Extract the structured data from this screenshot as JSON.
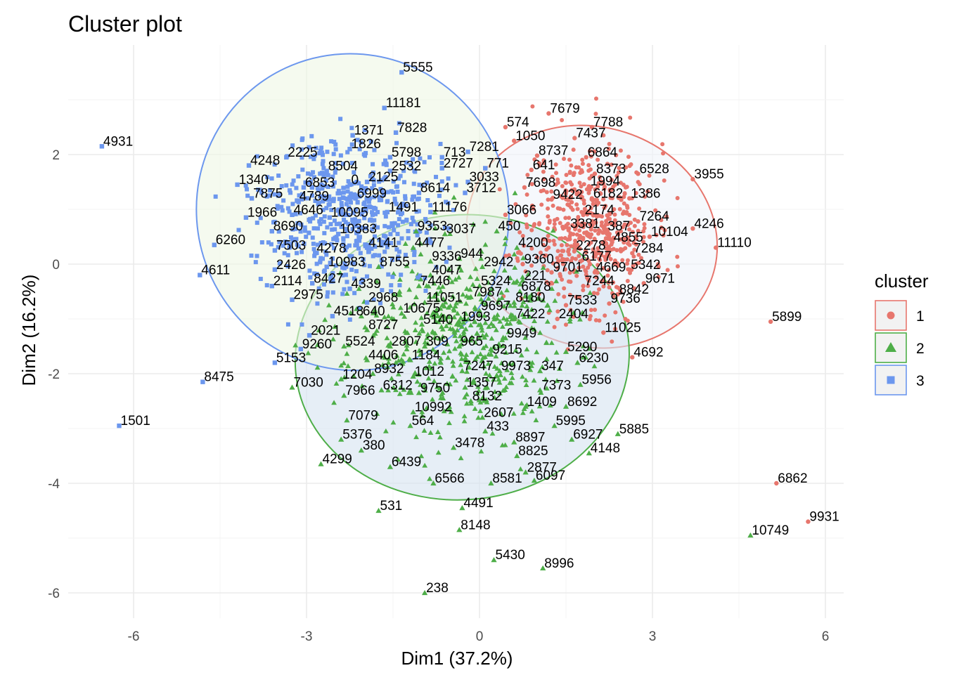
{
  "chart_data": {
    "type": "scatter",
    "title": "Cluster plot",
    "xlabel": "Dim1 (37.2%)",
    "ylabel": "Dim2 (16.2%)",
    "xlim": [
      -7.0,
      6.3
    ],
    "ylim": [
      -6.5,
      3.35
    ],
    "xticks": [
      -6,
      -3,
      0,
      3,
      6
    ],
    "yticks": [
      -6,
      -4,
      -2,
      0,
      2
    ],
    "xtick_labels": [
      "-6",
      "-3",
      "0",
      "3",
      "6"
    ],
    "ytick_labels": [
      "-6",
      "-4",
      "-2",
      "0",
      "2"
    ],
    "grid": true,
    "legend": {
      "title": "cluster",
      "position": "right",
      "entries": [
        {
          "label": "1",
          "color": "#E7766D",
          "shape": "circle"
        },
        {
          "label": "2",
          "color": "#4EAE48",
          "shape": "triangle"
        },
        {
          "label": "3",
          "color": "#6C97EE",
          "shape": "square"
        }
      ]
    },
    "ellipses": [
      {
        "cluster": "1",
        "cx": 1.95,
        "cy": 0.5,
        "rx": 2.2,
        "ry": 2.0,
        "angle": -18,
        "fill": "#f0f4fa",
        "stroke": "#E7766D"
      },
      {
        "cluster": "2",
        "cx": -0.3,
        "cy": -1.7,
        "rx": 2.9,
        "ry": 2.6,
        "angle": 5,
        "fill": "#d5e2f0",
        "stroke": "#4EAE48"
      },
      {
        "cluster": "3",
        "cx": -2.2,
        "cy": 0.95,
        "rx": 2.7,
        "ry": 2.9,
        "angle": 25,
        "fill": "#eef6e4",
        "stroke": "#6C97EE"
      }
    ],
    "clusters": [
      {
        "name": "1",
        "color": "#E7766D",
        "shape": "circle",
        "labeled_points": [
          {
            "label": "7679",
            "x": 1.2,
            "y": 2.75
          },
          {
            "label": "574",
            "x": 0.45,
            "y": 2.5
          },
          {
            "label": "7788",
            "x": 1.95,
            "y": 2.5
          },
          {
            "label": "1050",
            "x": 0.6,
            "y": 2.25
          },
          {
            "label": "7437",
            "x": 1.65,
            "y": 2.3
          },
          {
            "label": "8737",
            "x": 1.0,
            "y": 1.98
          },
          {
            "label": "6864",
            "x": 1.85,
            "y": 1.95
          },
          {
            "label": "641",
            "x": 0.9,
            "y": 1.72
          },
          {
            "label": "8373",
            "x": 2.0,
            "y": 1.65
          },
          {
            "label": "6528",
            "x": 2.75,
            "y": 1.65
          },
          {
            "label": "3955",
            "x": 3.7,
            "y": 1.55
          },
          {
            "label": "1994",
            "x": 1.9,
            "y": 1.42
          },
          {
            "label": "7698",
            "x": 0.78,
            "y": 1.4
          },
          {
            "label": "9422",
            "x": 1.25,
            "y": 1.18
          },
          {
            "label": "6182",
            "x": 1.95,
            "y": 1.2
          },
          {
            "label": "1386",
            "x": 2.6,
            "y": 1.2
          },
          {
            "label": "3066",
            "x": 0.45,
            "y": 0.9
          },
          {
            "label": "2174",
            "x": 1.8,
            "y": 0.9
          },
          {
            "label": "7264",
            "x": 2.75,
            "y": 0.78
          },
          {
            "label": "4246",
            "x": 3.7,
            "y": 0.65
          },
          {
            "label": "3381",
            "x": 1.55,
            "y": 0.65
          },
          {
            "label": "387",
            "x": 2.2,
            "y": 0.6
          },
          {
            "label": "10104",
            "x": 2.95,
            "y": 0.5
          },
          {
            "label": "4855",
            "x": 2.3,
            "y": 0.4
          },
          {
            "label": "11110",
            "x": 4.1,
            "y": 0.3
          },
          {
            "label": "2278",
            "x": 1.65,
            "y": 0.25
          },
          {
            "label": "7284",
            "x": 2.65,
            "y": 0.2
          },
          {
            "label": "6177",
            "x": 1.75,
            "y": 0.05
          },
          {
            "label": "9360",
            "x": 0.75,
            "y": 0.0
          },
          {
            "label": "9701",
            "x": 1.25,
            "y": -0.15
          },
          {
            "label": "4669",
            "x": 2.0,
            "y": -0.15
          },
          {
            "label": "5342",
            "x": 2.6,
            "y": -0.1
          },
          {
            "label": "9671",
            "x": 2.85,
            "y": -0.35
          },
          {
            "label": "7244",
            "x": 1.8,
            "y": -0.4
          },
          {
            "label": "8842",
            "x": 2.4,
            "y": -0.55
          },
          {
            "label": "9736",
            "x": 2.25,
            "y": -0.72
          },
          {
            "label": "7533",
            "x": 1.5,
            "y": -0.75
          },
          {
            "label": "2404",
            "x": 1.35,
            "y": -1.0
          },
          {
            "label": "11025",
            "x": 2.15,
            "y": -1.25
          },
          {
            "label": "5899",
            "x": 5.05,
            "y": -1.05
          },
          {
            "label": "4692",
            "x": 2.65,
            "y": -1.7
          },
          {
            "label": "6862",
            "x": 5.15,
            "y": -4.0
          },
          {
            "label": "9931",
            "x": 5.7,
            "y": -4.7
          }
        ]
      },
      {
        "name": "2",
        "color": "#4EAE48",
        "shape": "triangle",
        "labeled_points": [
          {
            "label": "3037",
            "x": -0.6,
            "y": 0.55
          },
          {
            "label": "450",
            "x": 0.3,
            "y": 0.6
          },
          {
            "label": "4200",
            "x": 0.65,
            "y": 0.3
          },
          {
            "label": "944",
            "x": -0.35,
            "y": 0.1
          },
          {
            "label": "2942",
            "x": 0.05,
            "y": -0.05
          },
          {
            "label": "5324",
            "x": 0.0,
            "y": -0.4
          },
          {
            "label": "221",
            "x": 0.75,
            "y": -0.3
          },
          {
            "label": "6878",
            "x": 0.7,
            "y": -0.5
          },
          {
            "label": "7987",
            "x": -0.15,
            "y": -0.6
          },
          {
            "label": "8180",
            "x": 0.6,
            "y": -0.7
          },
          {
            "label": "9697",
            "x": 0.0,
            "y": -0.85
          },
          {
            "label": "7422",
            "x": 0.6,
            "y": -1.0
          },
          {
            "label": "1993",
            "x": -0.35,
            "y": -1.05
          },
          {
            "label": "9949",
            "x": 0.45,
            "y": -1.35
          },
          {
            "label": "5290",
            "x": 1.5,
            "y": -1.6
          },
          {
            "label": "965",
            "x": -0.35,
            "y": -1.5
          },
          {
            "label": "9215",
            "x": 0.2,
            "y": -1.65
          },
          {
            "label": "6230",
            "x": 1.7,
            "y": -1.8
          },
          {
            "label": "7247",
            "x": -0.3,
            "y": -1.95
          },
          {
            "label": "9973",
            "x": 0.35,
            "y": -1.95
          },
          {
            "label": "347",
            "x": 1.05,
            "y": -1.95
          },
          {
            "label": "1357",
            "x": -0.25,
            "y": -2.25
          },
          {
            "label": "7373",
            "x": 1.05,
            "y": -2.3
          },
          {
            "label": "5956",
            "x": 1.75,
            "y": -2.2
          },
          {
            "label": "8132",
            "x": -0.15,
            "y": -2.5
          },
          {
            "label": "1409",
            "x": 0.8,
            "y": -2.6
          },
          {
            "label": "8692",
            "x": 1.5,
            "y": -2.6
          },
          {
            "label": "2607",
            "x": 0.05,
            "y": -2.8
          },
          {
            "label": "433",
            "x": 0.1,
            "y": -3.05
          },
          {
            "label": "5995",
            "x": 1.3,
            "y": -2.95
          },
          {
            "label": "6927",
            "x": 1.6,
            "y": -3.2
          },
          {
            "label": "5885",
            "x": 2.4,
            "y": -3.1
          },
          {
            "label": "8897",
            "x": 0.6,
            "y": -3.25
          },
          {
            "label": "4148",
            "x": 1.9,
            "y": -3.45
          },
          {
            "label": "8825",
            "x": 0.65,
            "y": -3.5
          },
          {
            "label": "3478",
            "x": -0.45,
            "y": -3.35
          },
          {
            "label": "2877",
            "x": 0.8,
            "y": -3.8
          },
          {
            "label": "8581",
            "x": 0.2,
            "y": -4.0
          },
          {
            "label": "6097",
            "x": 0.95,
            "y": -3.95
          },
          {
            "label": "6566",
            "x": -0.8,
            "y": -4.0
          },
          {
            "label": "4491",
            "x": -0.3,
            "y": -4.45
          },
          {
            "label": "8148",
            "x": -0.35,
            "y": -4.85
          },
          {
            "label": "5430",
            "x": 0.25,
            "y": -5.4
          },
          {
            "label": "8996",
            "x": 1.1,
            "y": -5.55
          },
          {
            "label": "238",
            "x": -0.95,
            "y": -6.0
          },
          {
            "label": "531",
            "x": -1.75,
            "y": -4.5
          },
          {
            "label": "4299",
            "x": -2.75,
            "y": -3.65
          },
          {
            "label": "6439",
            "x": -1.55,
            "y": -3.7
          },
          {
            "label": "380",
            "x": -2.05,
            "y": -3.4
          },
          {
            "label": "5376",
            "x": -2.4,
            "y": -3.2
          },
          {
            "label": "564",
            "x": -1.2,
            "y": -2.95
          },
          {
            "label": "10992",
            "x": -1.15,
            "y": -2.7
          },
          {
            "label": "7079",
            "x": -2.3,
            "y": -2.85
          },
          {
            "label": "7966",
            "x": -2.35,
            "y": -2.4
          },
          {
            "label": "6312",
            "x": -1.7,
            "y": -2.3
          },
          {
            "label": "9750",
            "x": -1.05,
            "y": -2.35
          },
          {
            "label": "1204",
            "x": -2.4,
            "y": -2.1
          },
          {
            "label": "8932",
            "x": -1.85,
            "y": -2.0
          },
          {
            "label": "1012",
            "x": -1.15,
            "y": -2.05
          },
          {
            "label": "4406",
            "x": -1.95,
            "y": -1.75
          },
          {
            "label": "1184",
            "x": -1.2,
            "y": -1.75
          },
          {
            "label": "2807",
            "x": -1.55,
            "y": -1.5
          },
          {
            "label": "309",
            "x": -0.95,
            "y": -1.5
          },
          {
            "label": "5524",
            "x": -2.35,
            "y": -1.5
          },
          {
            "label": "7030",
            "x": -3.25,
            "y": -2.25
          },
          {
            "label": "8727",
            "x": -1.95,
            "y": -1.2
          },
          {
            "label": "5140",
            "x": -1.0,
            "y": -1.1
          },
          {
            "label": "640",
            "x": -2.05,
            "y": -0.95
          },
          {
            "label": "10675",
            "x": -1.35,
            "y": -0.9
          },
          {
            "label": "11051",
            "x": -0.95,
            "y": -0.7
          },
          {
            "label": "7446",
            "x": -1.05,
            "y": -0.4
          },
          {
            "label": "4047",
            "x": -0.85,
            "y": -0.2
          },
          {
            "label": "9336",
            "x": -0.85,
            "y": 0.05
          },
          {
            "label": "8755",
            "x": -1.75,
            "y": -0.05
          },
          {
            "label": "4477",
            "x": -1.15,
            "y": 0.3
          },
          {
            "label": "9353",
            "x": -1.1,
            "y": 0.6
          },
          {
            "label": "10749",
            "x": 4.7,
            "y": -4.95
          }
        ]
      },
      {
        "name": "3",
        "color": "#6C97EE",
        "shape": "square",
        "labeled_points": [
          {
            "label": "5555",
            "x": -1.35,
            "y": 3.5
          },
          {
            "label": "11181",
            "x": -1.65,
            "y": 2.85
          },
          {
            "label": "4931",
            "x": -6.55,
            "y": 2.15
          },
          {
            "label": "1371",
            "x": -2.2,
            "y": 2.35
          },
          {
            "label": "7828",
            "x": -1.45,
            "y": 2.4
          },
          {
            "label": "1826",
            "x": -2.25,
            "y": 2.1
          },
          {
            "label": "2225",
            "x": -3.35,
            "y": 1.95
          },
          {
            "label": "5798",
            "x": -1.55,
            "y": 1.95
          },
          {
            "label": "713",
            "x": -0.65,
            "y": 1.95
          },
          {
            "label": "7281",
            "x": -0.2,
            "y": 2.05
          },
          {
            "label": "4248",
            "x": -4.0,
            "y": 1.8
          },
          {
            "label": "8504",
            "x": -2.65,
            "y": 1.7
          },
          {
            "label": "2532",
            "x": -1.55,
            "y": 1.7
          },
          {
            "label": "2727",
            "x": -0.65,
            "y": 1.75
          },
          {
            "label": "771",
            "x": 0.1,
            "y": 1.75
          },
          {
            "label": "1340",
            "x": -4.2,
            "y": 1.45
          },
          {
            "label": "6853",
            "x": -3.05,
            "y": 1.4
          },
          {
            "label": "0",
            "x": -2.25,
            "y": 1.45
          },
          {
            "label": "2125",
            "x": -1.95,
            "y": 1.5
          },
          {
            "label": "3033",
            "x": -0.2,
            "y": 1.5
          },
          {
            "label": "7875",
            "x": -3.95,
            "y": 1.2
          },
          {
            "label": "4789",
            "x": -3.15,
            "y": 1.15
          },
          {
            "label": "6999",
            "x": -2.15,
            "y": 1.2
          },
          {
            "label": "8614",
            "x": -1.05,
            "y": 1.3
          },
          {
            "label": "3712",
            "x": -0.25,
            "y": 1.3
          },
          {
            "label": "1966",
            "x": -4.05,
            "y": 0.85
          },
          {
            "label": "4646",
            "x": -3.25,
            "y": 0.9
          },
          {
            "label": "10095",
            "x": -2.6,
            "y": 0.85
          },
          {
            "label": "1491",
            "x": -1.6,
            "y": 0.95
          },
          {
            "label": "11176",
            "x": -0.85,
            "y": 0.95
          },
          {
            "label": "8690",
            "x": -3.6,
            "y": 0.6
          },
          {
            "label": "10383",
            "x": -2.45,
            "y": 0.55
          },
          {
            "label": "6260",
            "x": -4.6,
            "y": 0.35
          },
          {
            "label": "7503",
            "x": -3.55,
            "y": 0.25
          },
          {
            "label": "4278",
            "x": -2.85,
            "y": 0.2
          },
          {
            "label": "4141",
            "x": -1.95,
            "y": 0.3
          },
          {
            "label": "10983",
            "x": -2.65,
            "y": -0.05
          },
          {
            "label": "4611",
            "x": -4.85,
            "y": -0.2
          },
          {
            "label": "2426",
            "x": -3.55,
            "y": -0.1
          },
          {
            "label": "2114",
            "x": -3.6,
            "y": -0.4
          },
          {
            "label": "8427",
            "x": -2.9,
            "y": -0.35
          },
          {
            "label": "4339",
            "x": -2.25,
            "y": -0.45
          },
          {
            "label": "2975",
            "x": -3.25,
            "y": -0.65
          },
          {
            "label": "2968",
            "x": -1.95,
            "y": -0.7
          },
          {
            "label": "4518",
            "x": -2.55,
            "y": -0.95
          },
          {
            "label": "2021",
            "x": -2.95,
            "y": -1.3
          },
          {
            "label": "9260",
            "x": -3.1,
            "y": -1.55
          },
          {
            "label": "5153",
            "x": -3.55,
            "y": -1.8
          },
          {
            "label": "8475",
            "x": -4.8,
            "y": -2.15
          },
          {
            "label": "1501",
            "x": -6.25,
            "y": -2.95
          }
        ]
      }
    ]
  }
}
